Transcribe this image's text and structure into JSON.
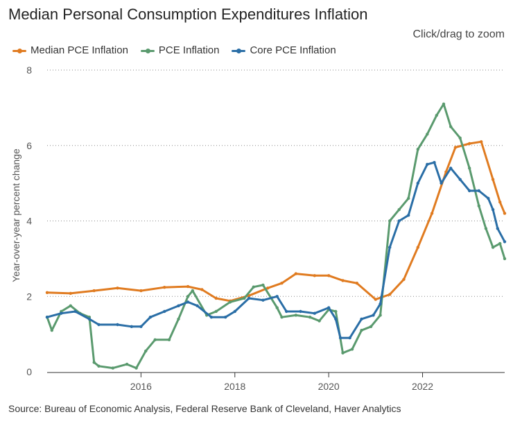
{
  "page": {
    "title": "Median Personal Consumption Expenditures Inflation",
    "zoom_hint": "Click/drag to zoom",
    "source": "Source: Bureau of Economic Analysis, Federal Reserve Bank of Cleveland, Haver Analytics"
  },
  "chart_data": {
    "type": "line",
    "title": "Median Personal Consumption Expenditures Inflation",
    "xlabel": "",
    "ylabel": "Year-over-year percent change",
    "xlim": [
      2014.0,
      2023.75
    ],
    "ylim": [
      0,
      8
    ],
    "y_ticks": [
      "0",
      "2",
      "4",
      "6",
      "8"
    ],
    "x_ticks": [
      "2016",
      "2018",
      "2020",
      "2022"
    ],
    "grid": "horizontal-dotted",
    "legend_position": "top-left",
    "series": [
      {
        "name": "Median PCE Inflation",
        "color": "#e07b20",
        "points": [
          [
            2014.0,
            2.1
          ],
          [
            2014.5,
            2.08
          ],
          [
            2015.0,
            2.15
          ],
          [
            2015.5,
            2.22
          ],
          [
            2016.0,
            2.15
          ],
          [
            2016.5,
            2.24
          ],
          [
            2017.0,
            2.26
          ],
          [
            2017.3,
            2.18
          ],
          [
            2017.6,
            1.95
          ],
          [
            2017.9,
            1.88
          ],
          [
            2018.3,
            2.02
          ],
          [
            2018.7,
            2.22
          ],
          [
            2019.0,
            2.35
          ],
          [
            2019.3,
            2.6
          ],
          [
            2019.7,
            2.55
          ],
          [
            2020.0,
            2.55
          ],
          [
            2020.3,
            2.42
          ],
          [
            2020.6,
            2.35
          ],
          [
            2021.0,
            1.92
          ],
          [
            2021.3,
            2.05
          ],
          [
            2021.6,
            2.45
          ],
          [
            2021.9,
            3.3
          ],
          [
            2022.2,
            4.2
          ],
          [
            2022.5,
            5.3
          ],
          [
            2022.7,
            5.95
          ],
          [
            2023.0,
            6.05
          ],
          [
            2023.25,
            6.1
          ],
          [
            2023.5,
            5.1
          ],
          [
            2023.65,
            4.5
          ],
          [
            2023.75,
            4.2
          ]
        ]
      },
      {
        "name": "PCE Inflation",
        "color": "#5a9a6e",
        "points": [
          [
            2014.0,
            1.45
          ],
          [
            2014.1,
            1.1
          ],
          [
            2014.3,
            1.6
          ],
          [
            2014.5,
            1.75
          ],
          [
            2014.7,
            1.55
          ],
          [
            2014.9,
            1.45
          ],
          [
            2015.0,
            0.25
          ],
          [
            2015.1,
            0.15
          ],
          [
            2015.4,
            0.1
          ],
          [
            2015.7,
            0.2
          ],
          [
            2015.9,
            0.1
          ],
          [
            2016.1,
            0.55
          ],
          [
            2016.3,
            0.85
          ],
          [
            2016.6,
            0.85
          ],
          [
            2016.8,
            1.4
          ],
          [
            2017.0,
            2.0
          ],
          [
            2017.1,
            2.15
          ],
          [
            2017.4,
            1.5
          ],
          [
            2017.6,
            1.6
          ],
          [
            2017.9,
            1.85
          ],
          [
            2018.2,
            1.95
          ],
          [
            2018.4,
            2.25
          ],
          [
            2018.6,
            2.3
          ],
          [
            2018.9,
            1.7
          ],
          [
            2019.0,
            1.45
          ],
          [
            2019.3,
            1.5
          ],
          [
            2019.6,
            1.45
          ],
          [
            2019.8,
            1.35
          ],
          [
            2020.0,
            1.65
          ],
          [
            2020.15,
            1.6
          ],
          [
            2020.3,
            0.5
          ],
          [
            2020.5,
            0.6
          ],
          [
            2020.7,
            1.1
          ],
          [
            2020.9,
            1.2
          ],
          [
            2021.1,
            1.5
          ],
          [
            2021.3,
            4.0
          ],
          [
            2021.5,
            4.3
          ],
          [
            2021.7,
            4.6
          ],
          [
            2021.9,
            5.9
          ],
          [
            2022.1,
            6.3
          ],
          [
            2022.3,
            6.8
          ],
          [
            2022.45,
            7.1
          ],
          [
            2022.6,
            6.5
          ],
          [
            2022.8,
            6.2
          ],
          [
            2023.0,
            5.4
          ],
          [
            2023.2,
            4.4
          ],
          [
            2023.35,
            3.8
          ],
          [
            2023.5,
            3.3
          ],
          [
            2023.65,
            3.4
          ],
          [
            2023.75,
            3.0
          ]
        ]
      },
      {
        "name": "Core PCE Inflation",
        "color": "#2a6ea6",
        "points": [
          [
            2014.0,
            1.45
          ],
          [
            2014.3,
            1.55
          ],
          [
            2014.6,
            1.6
          ],
          [
            2014.9,
            1.4
          ],
          [
            2015.1,
            1.25
          ],
          [
            2015.5,
            1.25
          ],
          [
            2015.8,
            1.2
          ],
          [
            2016.0,
            1.2
          ],
          [
            2016.2,
            1.45
          ],
          [
            2016.5,
            1.6
          ],
          [
            2016.8,
            1.75
          ],
          [
            2017.0,
            1.85
          ],
          [
            2017.2,
            1.75
          ],
          [
            2017.5,
            1.45
          ],
          [
            2017.8,
            1.45
          ],
          [
            2018.0,
            1.6
          ],
          [
            2018.3,
            1.95
          ],
          [
            2018.6,
            1.9
          ],
          [
            2018.9,
            2.0
          ],
          [
            2019.1,
            1.6
          ],
          [
            2019.4,
            1.6
          ],
          [
            2019.7,
            1.55
          ],
          [
            2020.0,
            1.7
          ],
          [
            2020.15,
            1.4
          ],
          [
            2020.25,
            0.9
          ],
          [
            2020.45,
            0.9
          ],
          [
            2020.7,
            1.4
          ],
          [
            2020.95,
            1.5
          ],
          [
            2021.1,
            1.8
          ],
          [
            2021.3,
            3.3
          ],
          [
            2021.5,
            4.0
          ],
          [
            2021.7,
            4.15
          ],
          [
            2021.9,
            5.0
          ],
          [
            2022.1,
            5.5
          ],
          [
            2022.25,
            5.55
          ],
          [
            2022.4,
            5.0
          ],
          [
            2022.6,
            5.4
          ],
          [
            2022.8,
            5.1
          ],
          [
            2023.0,
            4.8
          ],
          [
            2023.2,
            4.8
          ],
          [
            2023.4,
            4.6
          ],
          [
            2023.5,
            4.3
          ],
          [
            2023.6,
            3.8
          ],
          [
            2023.75,
            3.45
          ]
        ]
      }
    ]
  }
}
